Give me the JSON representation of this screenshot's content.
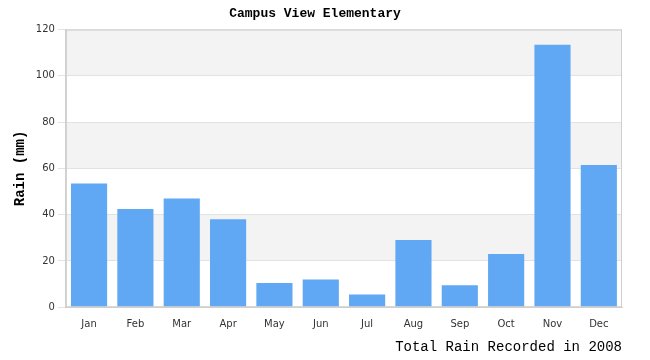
{
  "chart_data": {
    "type": "bar",
    "title": "Campus View Elementary",
    "y_label": "Rain (mm)",
    "x_label": "Total Rain Recorded in 2008",
    "categories": [
      "Jan",
      "Feb",
      "Mar",
      "Apr",
      "May",
      "Jun",
      "Jul",
      "Aug",
      "Sep",
      "Oct",
      "Nov",
      "Dec"
    ],
    "values": [
      53.5,
      42.5,
      47,
      38,
      10.5,
      12,
      5.5,
      29,
      9.5,
      23,
      113.5,
      61.5
    ],
    "color": "#60a8f4",
    "ylim": [
      0,
      120
    ],
    "yticks": [
      0,
      20,
      40,
      60,
      80,
      100,
      120
    ],
    "grid": true
  }
}
